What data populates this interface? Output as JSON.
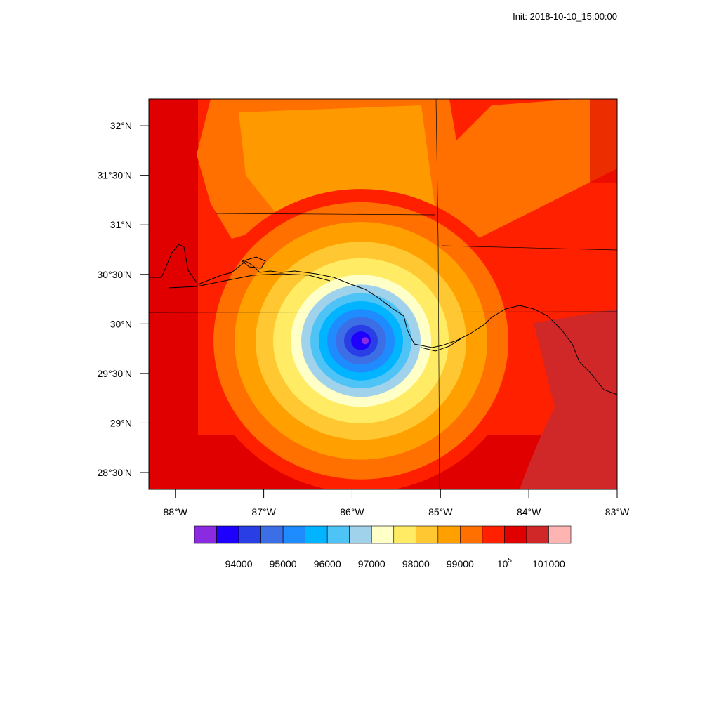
{
  "header": {
    "init_label": "Init: 2018-10-10_15:00:00"
  },
  "map": {
    "lon_range": [
      -88.3,
      -83.0
    ],
    "lat_range": [
      28.33,
      32.27
    ],
    "storm_center": {
      "lon": -85.9,
      "lat": 29.83
    },
    "lat_ticks": [
      {
        "value": 32.0,
        "label": "32°N"
      },
      {
        "value": 31.5,
        "label": "31°30'N"
      },
      {
        "value": 31.0,
        "label": "31°N"
      },
      {
        "value": 30.5,
        "label": "30°30'N"
      },
      {
        "value": 30.0,
        "label": "30°N"
      },
      {
        "value": 29.5,
        "label": "29°30'N"
      },
      {
        "value": 29.0,
        "label": "29°N"
      },
      {
        "value": 28.5,
        "label": "28°30'N"
      }
    ],
    "lon_ticks": [
      {
        "value": -88,
        "label": "88°W"
      },
      {
        "value": -87,
        "label": "87°W"
      },
      {
        "value": -86,
        "label": "86°W"
      },
      {
        "value": -85,
        "label": "85°W"
      },
      {
        "value": -84,
        "label": "84°W"
      },
      {
        "value": -83,
        "label": "83°W"
      }
    ]
  },
  "colorbar": {
    "colors": [
      "#8a2be2",
      "#1e00ff",
      "#2a3ee6",
      "#3c6fe6",
      "#1e8cff",
      "#00b4ff",
      "#4ec3f5",
      "#a0d2ec",
      "#ffffc8",
      "#ffec64",
      "#ffc832",
      "#ffa000",
      "#ff7000",
      "#ff2000",
      "#e00000",
      "#d02828",
      "#ffb4b4"
    ],
    "labels": [
      {
        "index": 1,
        "text": "94000",
        "exp": ""
      },
      {
        "index": 3,
        "text": "95000",
        "exp": ""
      },
      {
        "index": 5,
        "text": "96000",
        "exp": ""
      },
      {
        "index": 7,
        "text": "97000",
        "exp": ""
      },
      {
        "index": 9,
        "text": "98000",
        "exp": ""
      },
      {
        "index": 11,
        "text": "99000",
        "exp": ""
      },
      {
        "index": 13,
        "text": "10",
        "exp": "5"
      },
      {
        "index": 15,
        "text": "101000",
        "exp": ""
      }
    ]
  }
}
